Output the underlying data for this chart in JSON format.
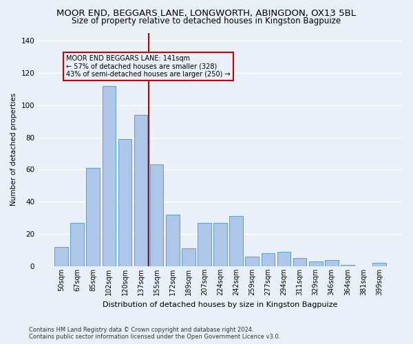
{
  "title": "MOOR END, BEGGARS LANE, LONGWORTH, ABINGDON, OX13 5BL",
  "subtitle": "Size of property relative to detached houses in Kingston Bagpuize",
  "xlabel": "Distribution of detached houses by size in Kingston Bagpuize",
  "ylabel": "Number of detached properties",
  "footnote1": "Contains HM Land Registry data © Crown copyright and database right 2024.",
  "footnote2": "Contains public sector information licensed under the Open Government Licence v3.0.",
  "bar_labels": [
    "50sqm",
    "67sqm",
    "85sqm",
    "102sqm",
    "120sqm",
    "137sqm",
    "155sqm",
    "172sqm",
    "189sqm",
    "207sqm",
    "224sqm",
    "242sqm",
    "259sqm",
    "277sqm",
    "294sqm",
    "311sqm",
    "329sqm",
    "346sqm",
    "364sqm",
    "381sqm",
    "399sqm"
  ],
  "bar_values": [
    12,
    27,
    61,
    112,
    79,
    94,
    63,
    32,
    11,
    27,
    27,
    31,
    6,
    8,
    9,
    5,
    3,
    4,
    1,
    0,
    2
  ],
  "bar_color": "#aec6e8",
  "bar_edge_color": "#5a9fd4",
  "vline_x": 5.5,
  "vline_color": "#cc0000",
  "annotation_title": "MOOR END BEGGARS LANE: 141sqm",
  "annotation_line1": "← 57% of detached houses are smaller (328)",
  "annotation_line2": "43% of semi-detached houses are larger (250) →",
  "annotation_box_color": "#cc0000",
  "ylim": [
    0,
    145
  ],
  "yticks": [
    0,
    20,
    40,
    60,
    80,
    100,
    120,
    140
  ],
  "background_color": "#eaf0f8",
  "grid_color": "#ffffff",
  "title_fontsize": 9.5,
  "subtitle_fontsize": 8.5
}
